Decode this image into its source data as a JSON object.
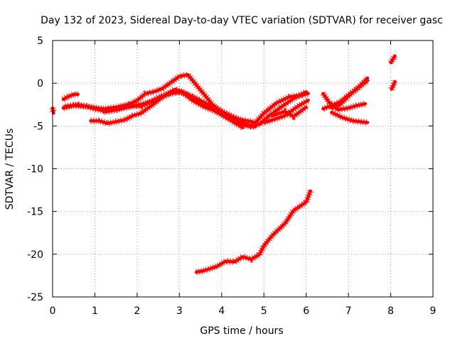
{
  "chart_data": {
    "type": "line",
    "title": "Day 132 of 2023, Sidereal Day-to-day VTEC variation (SDTVAR) for receiver gasc",
    "xlabel": "GPS time / hours",
    "ylabel": "SDTVAR / TECUs",
    "xlim": [
      0,
      9
    ],
    "ylim": [
      -25,
      5
    ],
    "xticks": [
      0,
      1,
      2,
      3,
      4,
      5,
      6,
      7,
      8,
      9
    ],
    "yticks": [
      5,
      0,
      -5,
      -10,
      -15,
      -20,
      -25
    ],
    "xtick_labels": [
      "0",
      "1",
      "2",
      "3",
      "4",
      "5",
      "6",
      "7",
      "8",
      "9"
    ],
    "ytick_labels": [
      "5",
      "0",
      "-5",
      "-10",
      "-15",
      "-20",
      "-25"
    ],
    "grid": true,
    "color": "#ff0000",
    "series": [
      {
        "name": "trace-1",
        "x": [
          0.25,
          0.35,
          0.5,
          0.6
        ],
        "y": [
          -1.9,
          -1.6,
          -1.3,
          -1.3
        ]
      },
      {
        "name": "trace-2",
        "x": [
          0.25,
          0.5,
          0.8,
          1.0,
          1.3,
          1.5,
          1.8,
          2.0,
          2.3,
          2.5,
          2.8,
          3.0,
          3.3,
          3.6,
          3.9,
          4.1,
          4.3,
          4.5
        ],
        "y": [
          -2.9,
          -2.6,
          -2.7,
          -3.0,
          -3.3,
          -3.1,
          -2.8,
          -2.6,
          -2.2,
          -1.7,
          -1.2,
          -1.0,
          -1.6,
          -2.6,
          -3.4,
          -4.0,
          -4.6,
          -5.2
        ]
      },
      {
        "name": "trace-3",
        "x": [
          0.3,
          0.6,
          0.9,
          1.2,
          1.5,
          1.8,
          2.1,
          2.4,
          2.7,
          2.9,
          3.1,
          3.4,
          3.7,
          4.0,
          4.3,
          4.5,
          4.7,
          4.9,
          5.1,
          5.4,
          5.7,
          6.0
        ],
        "y": [
          -2.7,
          -2.5,
          -2.8,
          -3.0,
          -2.8,
          -2.5,
          -2.7,
          -2.0,
          -1.3,
          -1.0,
          -1.1,
          -1.8,
          -2.5,
          -3.3,
          -4.0,
          -4.6,
          -5.0,
          -4.8,
          -3.9,
          -2.8,
          -1.8,
          -1.0
        ]
      },
      {
        "name": "trace-4",
        "x": [
          0.9,
          1.1,
          1.3,
          1.5,
          1.7,
          1.9,
          2.1,
          2.2,
          2.4,
          2.6,
          2.8,
          2.9,
          3.1,
          3.3,
          3.6,
          3.9,
          4.2,
          4.4,
          4.6,
          4.8
        ],
        "y": [
          -4.4,
          -4.4,
          -4.7,
          -4.5,
          -4.3,
          -3.8,
          -3.5,
          -3.1,
          -2.4,
          -1.6,
          -1.0,
          -0.7,
          -1.1,
          -2.0,
          -2.8,
          -3.3,
          -4.1,
          -4.6,
          -5.0,
          -5.1
        ]
      },
      {
        "name": "trace-5",
        "x": [
          1.2,
          1.5,
          1.8,
          2.0,
          2.2,
          2.4,
          2.6,
          2.8,
          3.0,
          3.2,
          3.4,
          3.6,
          3.8,
          4.0,
          4.2,
          4.4,
          4.6,
          4.8,
          5.0,
          5.3,
          5.6,
          5.9,
          6.05
        ],
        "y": [
          -3.3,
          -3.1,
          -2.5,
          -2.0,
          -1.2,
          -1.0,
          -0.6,
          0.1,
          0.8,
          1.0,
          -0.2,
          -1.4,
          -2.6,
          -3.3,
          -3.8,
          -4.2,
          -4.4,
          -4.6,
          -3.5,
          -2.3,
          -1.6,
          -1.4,
          -1.2
        ]
      },
      {
        "name": "trace-6",
        "x": [
          5.0,
          5.2,
          5.5,
          5.8,
          6.05
        ],
        "y": [
          -4.6,
          -4.3,
          -3.8,
          -2.7,
          -2.0
        ]
      },
      {
        "name": "trace-7",
        "x": [
          5.2,
          5.5,
          5.7,
          6.0
        ],
        "y": [
          -3.8,
          -3.3,
          -3.9,
          -2.8
        ]
      },
      {
        "name": "trace-8",
        "x": [
          3.4,
          3.6,
          3.9,
          4.1,
          4.3,
          4.5,
          4.7,
          4.9,
          5.0,
          5.2,
          5.5,
          5.7,
          6.0,
          6.1
        ],
        "y": [
          -22.1,
          -21.9,
          -21.4,
          -20.8,
          -20.9,
          -20.3,
          -20.6,
          -20.0,
          -19.0,
          -17.8,
          -16.4,
          -14.9,
          -13.9,
          -12.6
        ]
      },
      {
        "name": "trace-9",
        "x": [
          6.4,
          6.55,
          6.75,
          7.0,
          7.2,
          7.4
        ],
        "y": [
          -1.2,
          -2.3,
          -3.1,
          -2.9,
          -2.6,
          -2.4
        ]
      },
      {
        "name": "trace-10",
        "x": [
          6.4,
          6.6,
          6.8,
          7.0,
          7.2,
          7.45
        ],
        "y": [
          -3.0,
          -2.6,
          -2.2,
          -1.4,
          -0.7,
          0.6
        ]
      },
      {
        "name": "trace-11",
        "x": [
          6.6,
          6.8,
          7.0,
          7.2,
          7.45
        ],
        "y": [
          -2.9,
          -2.5,
          -1.5,
          -0.6,
          0.3
        ]
      },
      {
        "name": "trace-12",
        "x": [
          6.6,
          6.85,
          7.1,
          7.45
        ],
        "y": [
          -3.4,
          -4.0,
          -4.4,
          -4.6
        ]
      },
      {
        "name": "trace-13",
        "x": [
          8.0,
          8.1
        ],
        "y": [
          2.4,
          3.2
        ]
      },
      {
        "name": "trace-14",
        "x": [
          8.02,
          8.1
        ],
        "y": [
          -0.7,
          0.2
        ]
      },
      {
        "name": "trace-15",
        "x": [
          0.0,
          0.02
        ],
        "y": [
          -2.9,
          -3.5
        ]
      }
    ]
  }
}
